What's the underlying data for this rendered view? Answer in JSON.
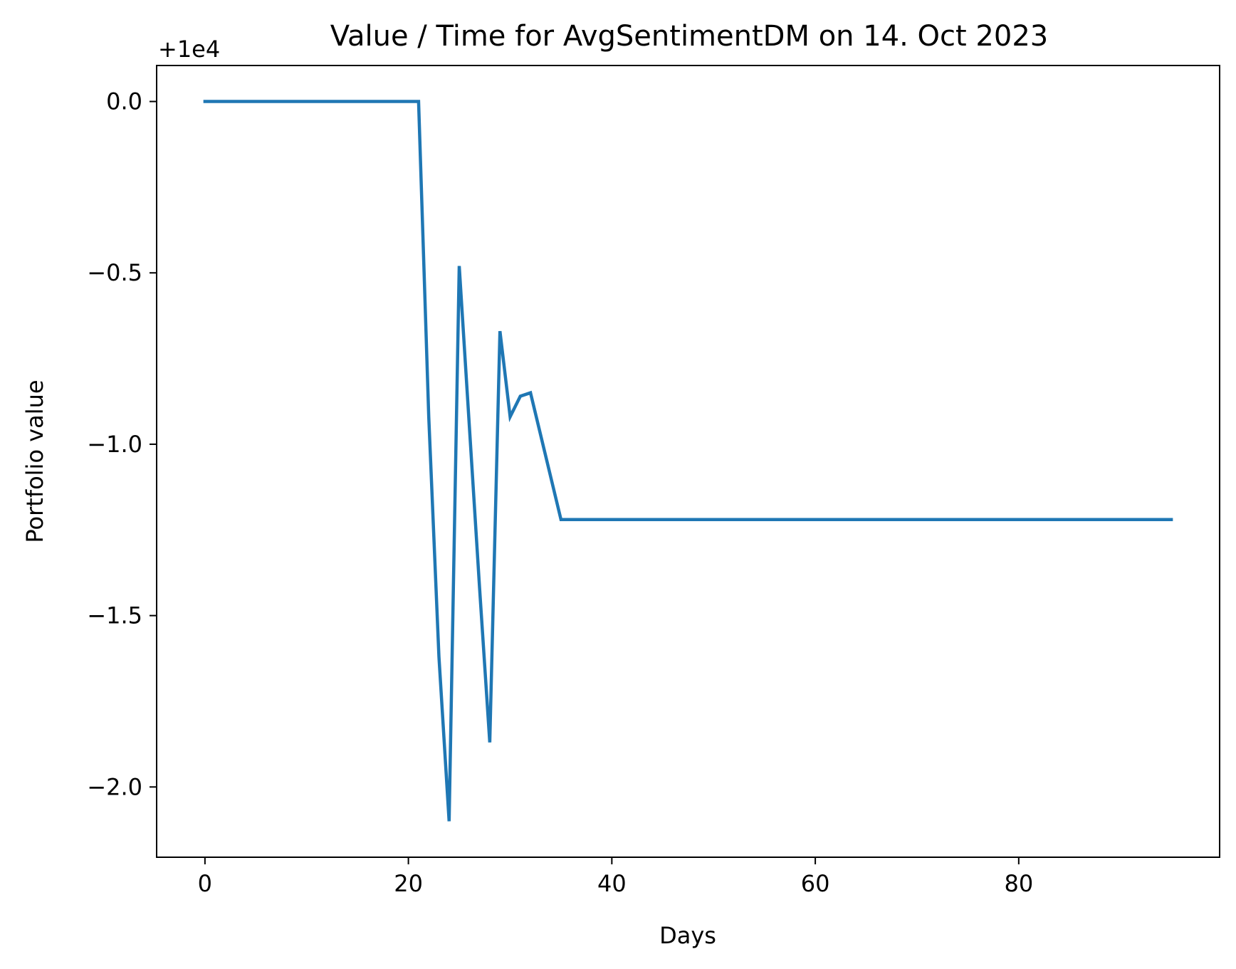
{
  "chart_data": {
    "type": "line",
    "title": "Value / Time for AvgSentimentDM on 14. Oct 2023",
    "xlabel": "Days",
    "ylabel": "Portfolio value",
    "y_offset_label": "+1e4",
    "xlim": [
      -4.75,
      99.75
    ],
    "ylim": [
      -2.205,
      0.105
    ],
    "x_ticks": [
      0,
      20,
      40,
      60,
      80
    ],
    "x_tick_labels": [
      "0",
      "20",
      "40",
      "60",
      "80"
    ],
    "y_ticks": [
      0.0,
      -0.5,
      -1.0,
      -1.5,
      -2.0
    ],
    "y_tick_labels": [
      "0.0",
      "−0.5",
      "−1.0",
      "−1.5",
      "−2.0"
    ],
    "grid": false,
    "series": [
      {
        "color": "#1f77b4",
        "x": [
          0,
          21,
          22,
          23,
          24,
          25,
          26,
          27,
          28,
          29,
          30,
          31,
          32,
          35,
          95
        ],
        "y": [
          0.0,
          0.0,
          -0.92,
          -1.62,
          -2.1,
          -0.48,
          -0.95,
          -1.42,
          -1.87,
          -0.67,
          -0.92,
          -0.86,
          -0.85,
          -1.22,
          -1.22
        ]
      }
    ]
  }
}
